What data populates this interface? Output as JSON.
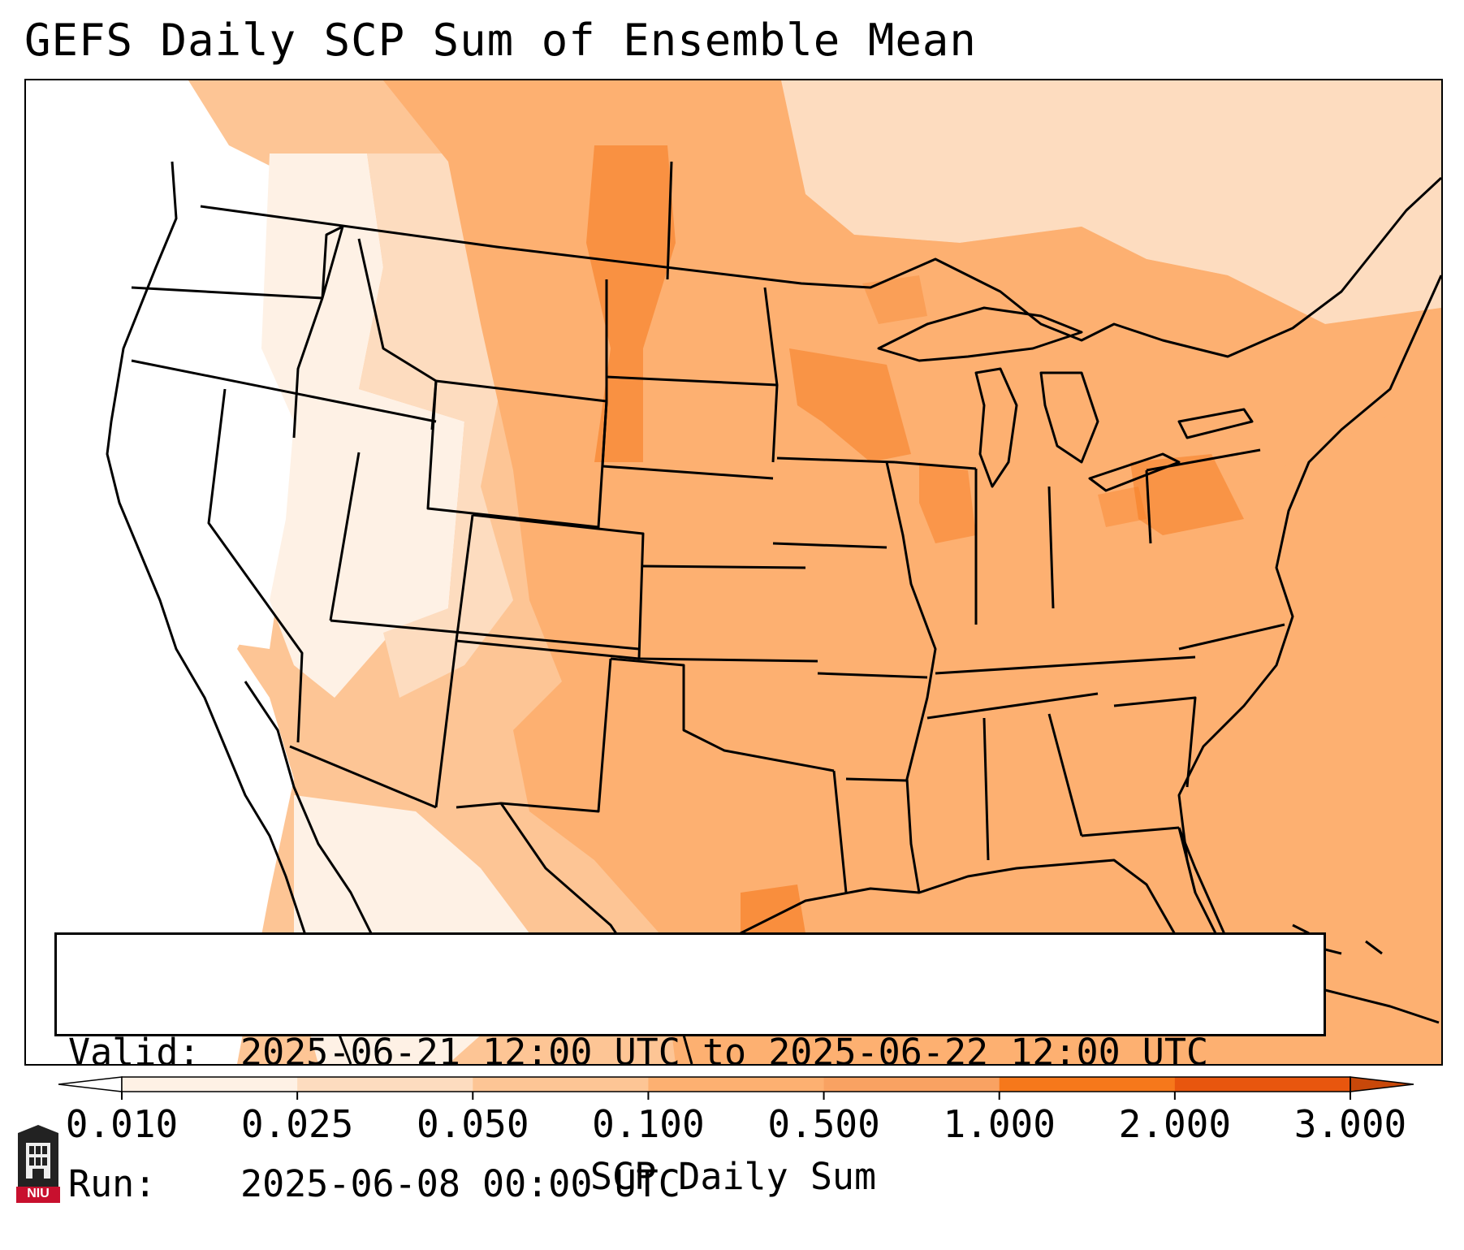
{
  "title": "GEFS Daily SCP Sum of Ensemble Mean",
  "info": {
    "valid_label": "Valid:",
    "valid_value": "2025-06-21 12:00 UTC to 2025-06-22 12:00 UTC",
    "run_label": "Run:",
    "run_value": "2025-06-08 00:00 UTC"
  },
  "colorbar": {
    "label": "SCP Daily Sum",
    "ticks": [
      "0.010",
      "0.025",
      "0.050",
      "0.100",
      "0.500",
      "1.000",
      "2.000",
      "3.000"
    ],
    "colors": [
      "#fef1e5",
      "#fddcbf",
      "#fdc595",
      "#fdb071",
      "#f9a262",
      "#f6781b",
      "#e8560e",
      "#c8480a"
    ],
    "extend": "both"
  },
  "logo": {
    "text": "NIU",
    "color": "#c8102e"
  },
  "map": {
    "region": "Contiguous United States",
    "land_color": "#fdb071",
    "west_color": "#ffffff",
    "colors": {
      "blank": "#ffffff",
      "very_light": "#fef1e5",
      "light": "#fddcbf",
      "medium_light": "#fdc595",
      "medium": "#fdb071",
      "darker": "#f9a262",
      "dark": "#f6781b"
    }
  }
}
